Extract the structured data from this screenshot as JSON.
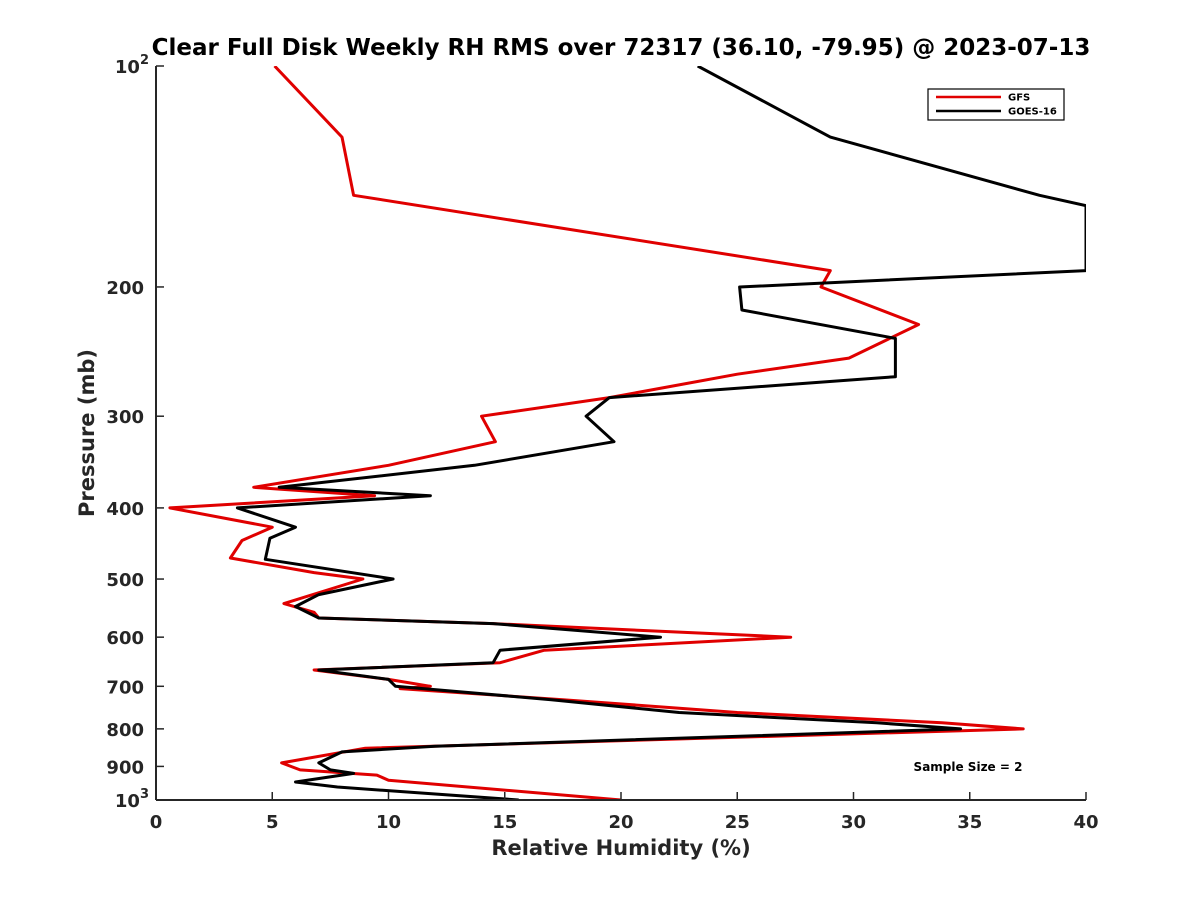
{
  "chart_data": {
    "type": "line",
    "title": "Clear Full Disk Weekly RH RMS over 72317 (36.10, -79.95) @ 2023-07-13",
    "xlabel": "Relative Humidity (%)",
    "ylabel": "Pressure (mb)",
    "xlim": [
      0,
      40
    ],
    "ylim": [
      100,
      1000
    ],
    "y_scale": "log",
    "y_reversed": true,
    "x_ticks": [
      0,
      5,
      10,
      15,
      20,
      25,
      30,
      35,
      40
    ],
    "y_ticks": [
      {
        "value": 100,
        "base": "10",
        "exp": "2"
      },
      {
        "value": 200,
        "label": "200"
      },
      {
        "value": 300,
        "label": "300"
      },
      {
        "value": 400,
        "label": "400"
      },
      {
        "value": 500,
        "label": "500"
      },
      {
        "value": 600,
        "label": "600"
      },
      {
        "value": 700,
        "label": "700"
      },
      {
        "value": 800,
        "label": "800"
      },
      {
        "value": 900,
        "label": "900"
      },
      {
        "value": 1000,
        "base": "10",
        "exp": "3"
      }
    ],
    "grid": false,
    "legend_position": "top-right",
    "annotation": "Sample Size = 2",
    "series": [
      {
        "name": "GFS",
        "color": "#e00000",
        "points": [
          [
            5.1,
            100
          ],
          [
            8.0,
            125
          ],
          [
            8.5,
            150
          ],
          [
            29.0,
            190
          ],
          [
            28.6,
            200
          ],
          [
            32.8,
            225
          ],
          [
            29.8,
            250
          ],
          [
            25.0,
            263
          ],
          [
            19.5,
            283
          ],
          [
            14.0,
            300
          ],
          [
            14.6,
            325
          ],
          [
            10.0,
            350
          ],
          [
            4.2,
            375
          ],
          [
            9.4,
            385
          ],
          [
            0.6,
            400
          ],
          [
            5.0,
            425
          ],
          [
            3.7,
            443
          ],
          [
            3.2,
            468
          ],
          [
            6.8,
            490
          ],
          [
            8.9,
            500
          ],
          [
            5.5,
            540
          ],
          [
            6.8,
            555
          ],
          [
            7.0,
            565
          ],
          [
            14.5,
            575
          ],
          [
            27.3,
            600
          ],
          [
            16.7,
            625
          ],
          [
            14.8,
            650
          ],
          [
            6.8,
            665
          ],
          [
            10.0,
            685
          ],
          [
            11.8,
            700
          ],
          [
            10.5,
            705
          ],
          [
            17.5,
            730
          ],
          [
            25.0,
            760
          ],
          [
            33.8,
            785
          ],
          [
            37.3,
            800
          ],
          [
            9.0,
            850
          ],
          [
            5.4,
            890
          ],
          [
            6.2,
            910
          ],
          [
            9.5,
            925
          ],
          [
            10.0,
            940
          ],
          [
            20.0,
            1000
          ]
        ]
      },
      {
        "name": "GOES-16",
        "color": "#000000",
        "points": [
          [
            23.3,
            100
          ],
          [
            29.0,
            125
          ],
          [
            38.0,
            150
          ],
          [
            40.0,
            155
          ],
          [
            40.0,
            190
          ],
          [
            25.1,
            200
          ],
          [
            25.2,
            215
          ],
          [
            31.8,
            235
          ],
          [
            31.8,
            265
          ],
          [
            19.5,
            283
          ],
          [
            18.5,
            300
          ],
          [
            19.7,
            325
          ],
          [
            13.7,
            350
          ],
          [
            5.3,
            375
          ],
          [
            11.8,
            385
          ],
          [
            3.5,
            400
          ],
          [
            6.0,
            425
          ],
          [
            4.9,
            440
          ],
          [
            4.7,
            470
          ],
          [
            10.2,
            500
          ],
          [
            7.0,
            525
          ],
          [
            6.0,
            545
          ],
          [
            7.0,
            565
          ],
          [
            14.5,
            575
          ],
          [
            21.7,
            600
          ],
          [
            14.8,
            625
          ],
          [
            14.5,
            650
          ],
          [
            7.0,
            665
          ],
          [
            10.0,
            685
          ],
          [
            10.3,
            700
          ],
          [
            17.0,
            730
          ],
          [
            22.5,
            760
          ],
          [
            31.0,
            785
          ],
          [
            34.6,
            800
          ],
          [
            12.0,
            845
          ],
          [
            8.0,
            860
          ],
          [
            7.0,
            890
          ],
          [
            7.5,
            910
          ],
          [
            8.5,
            920
          ],
          [
            6.0,
            945
          ],
          [
            7.8,
            960
          ],
          [
            15.6,
            1000
          ]
        ]
      }
    ]
  }
}
